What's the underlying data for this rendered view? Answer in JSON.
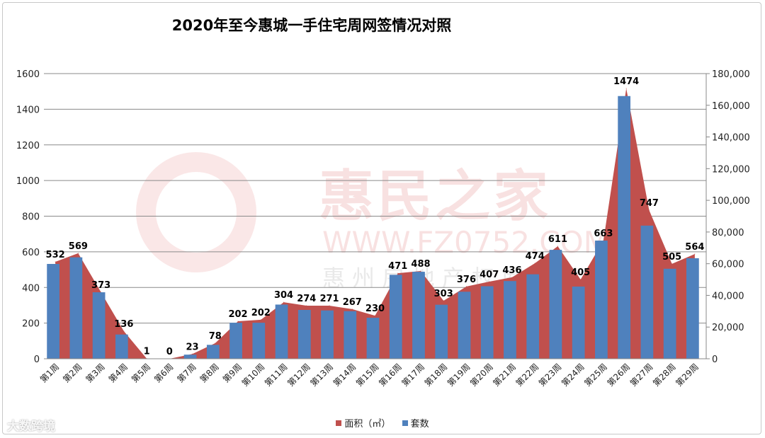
{
  "chart_data": {
    "type": "bar+area",
    "title": "2020年至今惠城一手住宅周网签情况对照",
    "categories": [
      "第1周",
      "第2周",
      "第3周",
      "第4周",
      "第5周",
      "第6周",
      "第7周",
      "第8周",
      "第9周",
      "第10周",
      "第11周",
      "第12周",
      "第13周",
      "第14周",
      "第15周",
      "第16周",
      "第17周",
      "第18周",
      "第19周",
      "第20周",
      "第21周",
      "第22周",
      "第23周",
      "第24周",
      "第25周",
      "第26周",
      "第27周",
      "第28周",
      "第29周"
    ],
    "series": [
      {
        "name": "面积（㎡）",
        "type": "area",
        "axis": "right",
        "color": "#C0504D",
        "values": [
          61200,
          66600,
          42000,
          17400,
          100,
          0,
          3000,
          9800,
          23700,
          24600,
          35700,
          33500,
          33500,
          31300,
          27200,
          54000,
          55400,
          36600,
          45600,
          48700,
          51400,
          60300,
          71000,
          50000,
          74600,
          170600,
          93800,
          59900,
          66100
        ]
      },
      {
        "name": "套数",
        "type": "bar",
        "axis": "left",
        "color": "#4F81BD",
        "values": [
          532,
          569,
          373,
          136,
          1,
          0,
          23,
          78,
          202,
          202,
          304,
          274,
          271,
          267,
          230,
          471,
          488,
          303,
          376,
          407,
          436,
          474,
          611,
          405,
          663,
          1474,
          747,
          505,
          564
        ]
      }
    ],
    "y_left": {
      "range": [
        0,
        1600
      ],
      "ticks": [
        "0",
        "200",
        "400",
        "600",
        "800",
        "1000",
        "1200",
        "1400",
        "1600"
      ]
    },
    "y_right": {
      "range": [
        0,
        180000
      ],
      "ticks": [
        "0",
        "20,000",
        "40,000",
        "60,000",
        "80,000",
        "100,000",
        "120,000",
        "140,000",
        "160,000",
        "180,000"
      ]
    },
    "grid": true,
    "legend": "bottom"
  },
  "watermark": {
    "brand": "惠民之家",
    "url": "WWW.FZ0752.COM",
    "slogan": "惠 州 房 地 产 权 威 媒 体",
    "corner": "大数跨境"
  }
}
